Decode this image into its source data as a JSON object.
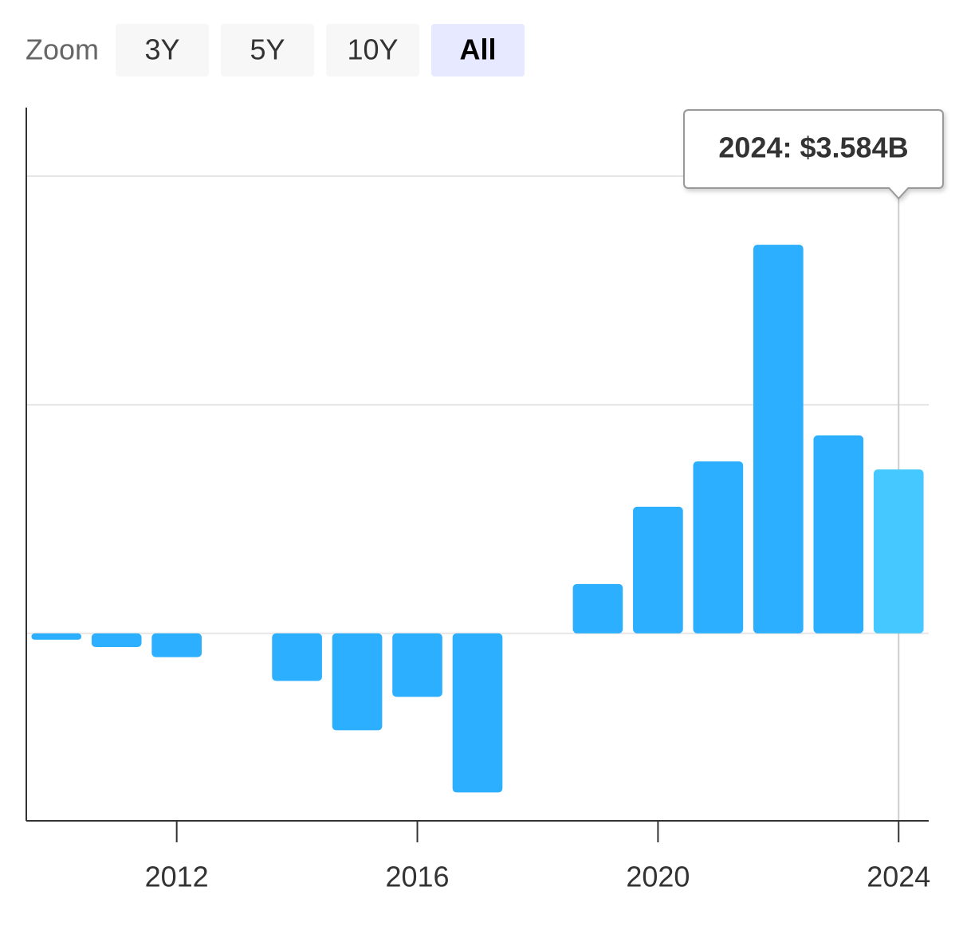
{
  "chart_data": {
    "type": "bar",
    "range_selector": {
      "label": "Zoom",
      "buttons": [
        "3Y",
        "5Y",
        "10Y",
        "All"
      ],
      "selected": 3
    },
    "x": [
      2010,
      2011,
      2012,
      2013,
      2014,
      2015,
      2016,
      2017,
      2018,
      2019,
      2020,
      2021,
      2022,
      2023,
      2024
    ],
    "values": [
      -0.14,
      -0.3,
      -0.52,
      null,
      -1.04,
      -2.12,
      -1.39,
      -3.48,
      null,
      1.08,
      2.77,
      3.76,
      8.5,
      4.33,
      3.584
    ],
    "color": "#2caffe",
    "highlight_color": "#45c8ff",
    "tooltip": {
      "index": 14,
      "text": "2024: $3.584B"
    },
    "xlim": [
      2009.5,
      2024.5
    ],
    "xticks": [
      2012,
      2016,
      2020,
      2024
    ],
    "ylim": [
      -4.1,
      11.5
    ],
    "yticks": [
      0,
      5,
      10
    ],
    "grid": true
  }
}
